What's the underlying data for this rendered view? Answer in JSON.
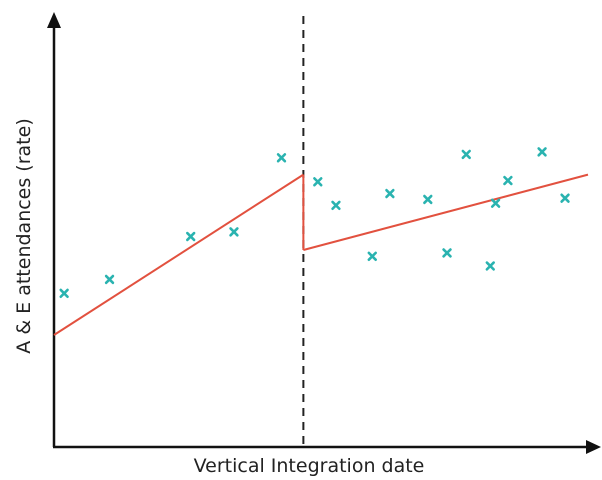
{
  "chart_data": {
    "type": "scatter",
    "title": "",
    "xlabel": "Vertical Integration date",
    "ylabel": "A & E attendances (rate)",
    "xlim": [
      0,
      100
    ],
    "ylim": [
      0,
      100
    ],
    "grid": false,
    "cutoff_x": 46.7,
    "series": [
      {
        "role": "points-before",
        "values": [
          {
            "x": 1.9,
            "y": 36.5
          },
          {
            "x": 10.4,
            "y": 39.8
          },
          {
            "x": 25.6,
            "y": 50.0
          },
          {
            "x": 33.7,
            "y": 51.1
          },
          {
            "x": 42.6,
            "y": 68.7
          }
        ]
      },
      {
        "role": "points-after",
        "values": [
          {
            "x": 49.4,
            "y": 63.0
          },
          {
            "x": 52.8,
            "y": 57.4
          },
          {
            "x": 59.6,
            "y": 45.3
          },
          {
            "x": 62.9,
            "y": 60.2
          },
          {
            "x": 70.0,
            "y": 58.8
          },
          {
            "x": 73.6,
            "y": 46.1
          },
          {
            "x": 77.2,
            "y": 69.5
          },
          {
            "x": 81.7,
            "y": 43.0
          },
          {
            "x": 82.7,
            "y": 57.9
          },
          {
            "x": 85.0,
            "y": 63.3
          },
          {
            "x": 91.4,
            "y": 70.1
          },
          {
            "x": 95.7,
            "y": 59.1
          }
        ]
      },
      {
        "role": "trend-before",
        "values": [
          {
            "x": 0,
            "y": 26.6
          },
          {
            "x": 46.7,
            "y": 64.7
          }
        ]
      },
      {
        "role": "trend-after",
        "values": [
          {
            "x": 46.7,
            "y": 46.8
          },
          {
            "x": 100,
            "y": 64.7
          }
        ]
      }
    ],
    "colors": {
      "points": "#2ab3b0",
      "trend": "#e2513f",
      "axes": "#111111",
      "cutoff": "#222222"
    }
  }
}
